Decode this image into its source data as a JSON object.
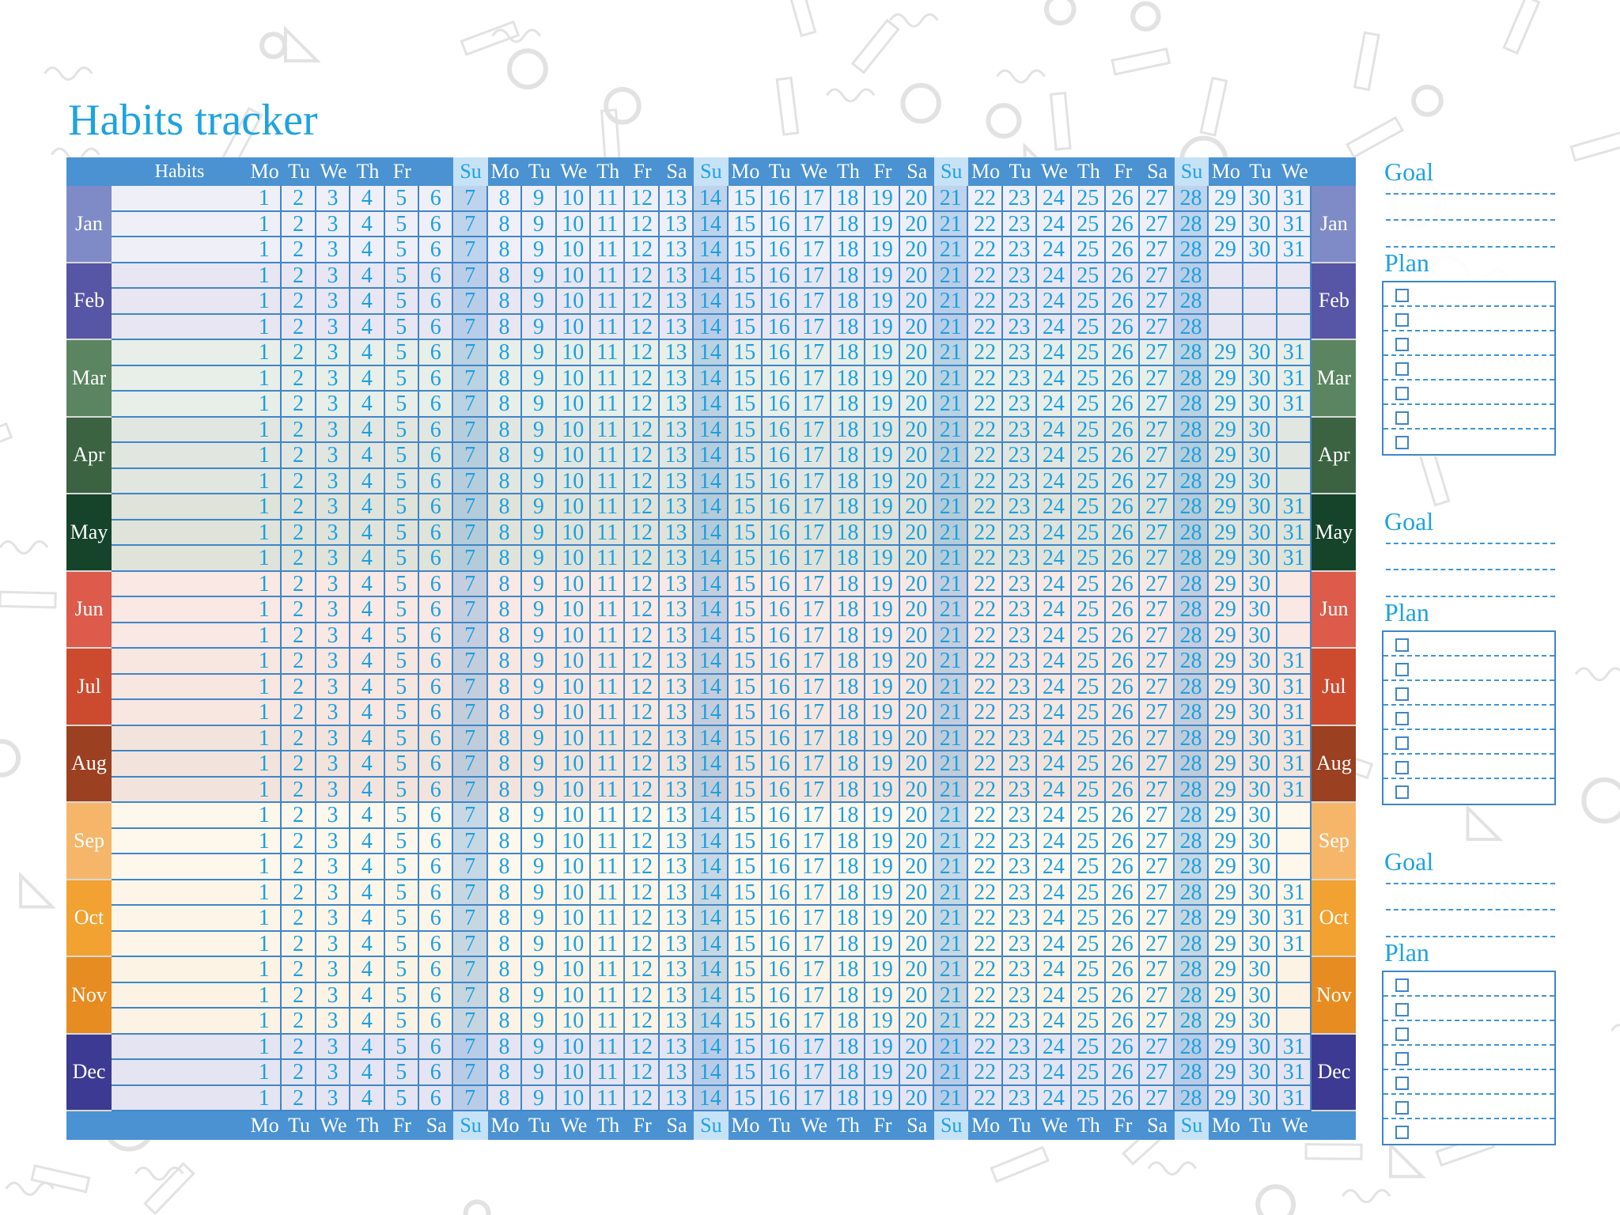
{
  "title": "Habits tracker",
  "header": {
    "habits_label": "Habits",
    "top_days": [
      "Mo",
      "Tu",
      "We",
      "Th",
      "Fr",
      "",
      "Su",
      "Mo",
      "Tu",
      "We",
      "Th",
      "Fr",
      "Sa",
      "Su",
      "Mo",
      "Tu",
      "We",
      "Th",
      "Fr",
      "Sa",
      "Su",
      "Mo",
      "Tu",
      "We",
      "Th",
      "Fr",
      "Sa",
      "Su",
      "Mo",
      "Tu",
      "We"
    ],
    "bottom_days": [
      "Mo",
      "Tu",
      "We",
      "Th",
      "Fr",
      "Sa",
      "Su",
      "Mo",
      "Tu",
      "We",
      "Th",
      "Fr",
      "Sa",
      "Su",
      "Mo",
      "Tu",
      "We",
      "Th",
      "Fr",
      "Sa",
      "Su",
      "Mo",
      "Tu",
      "We",
      "Th",
      "Fr",
      "Sa",
      "Su",
      "Mo",
      "Tu",
      "We"
    ]
  },
  "colors": {
    "accent": "#1ea3e0",
    "header_bg": "#4a92d2",
    "grid_line": "#3f86c8",
    "sunday_header": "#c6e2f7"
  },
  "months": [
    {
      "name": "Jan",
      "days": 31,
      "color": "#7f8bc6",
      "tint": "#efeff8"
    },
    {
      "name": "Feb",
      "days": 28,
      "color": "#5755a6",
      "tint": "#e8e6f3"
    },
    {
      "name": "Mar",
      "days": 31,
      "color": "#5a8560",
      "tint": "#e8eee8"
    },
    {
      "name": "Apr",
      "days": 30,
      "color": "#3b6342",
      "tint": "#e2e6e0"
    },
    {
      "name": "May",
      "days": 31,
      "color": "#15442a",
      "tint": "#dfe3da"
    },
    {
      "name": "Jun",
      "days": 30,
      "color": "#dc5b4a",
      "tint": "#f9e8e4"
    },
    {
      "name": "Jul",
      "days": 31,
      "color": "#cc4b2f",
      "tint": "#f8e6e0"
    },
    {
      "name": "Aug",
      "days": 31,
      "color": "#9b4020",
      "tint": "#f2e4dc"
    },
    {
      "name": "Sep",
      "days": 30,
      "color": "#f5b66a",
      "tint": "#fdf7ec"
    },
    {
      "name": "Oct",
      "days": 31,
      "color": "#f2a230",
      "tint": "#fdf6e8"
    },
    {
      "name": "Nov",
      "days": 30,
      "color": "#e68c20",
      "tint": "#fcf3e4"
    },
    {
      "name": "Dec",
      "days": 31,
      "color": "#3c3a92",
      "tint": "#e5e4f2"
    }
  ],
  "panels": [
    {
      "goal_label": "Goal",
      "plan_label": "Plan"
    },
    {
      "goal_label": "Goal",
      "plan_label": "Plan"
    },
    {
      "goal_label": "Goal",
      "plan_label": "Plan"
    }
  ]
}
